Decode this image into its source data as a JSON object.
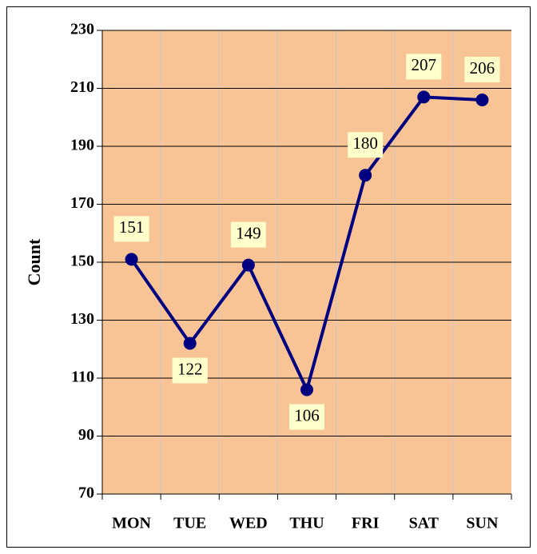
{
  "chart_data": {
    "type": "line",
    "y_label": "Count",
    "categories": [
      "MON",
      "TUE",
      "WED",
      "THU",
      "FRI",
      "SAT",
      "SUN"
    ],
    "series": [
      {
        "color": "#000080",
        "values": [
          151,
          122,
          149,
          106,
          180,
          207,
          206
        ]
      }
    ],
    "ylim": [
      70,
      230
    ],
    "yticks": [
      70,
      90,
      110,
      130,
      150,
      170,
      190,
      210,
      230
    ],
    "grid": true,
    "plot_background": "#f9c495"
  }
}
